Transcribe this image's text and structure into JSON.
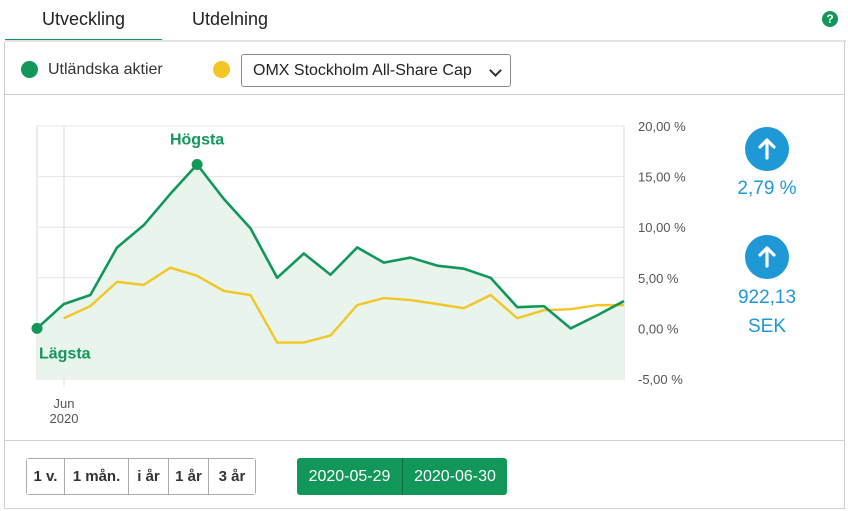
{
  "tabs": [
    {
      "label": "Utveckling",
      "active": true
    },
    {
      "label": "Utdelning",
      "active": false
    }
  ],
  "help_icon": "question-icon",
  "legend": {
    "fund_label": "Utländska aktier",
    "fund_color": "#12975a",
    "index_color": "#f3c623",
    "index_selected": "OMX Stockholm All-Share Cap"
  },
  "chart_data": {
    "type": "line",
    "x_labels": [
      "Jun 2020"
    ],
    "y_ticks": [
      "20,00 %",
      "15,00 %",
      "10,00 %",
      "5,00 %",
      "0,00 %",
      "-5,00 %"
    ],
    "ylim": [
      -5,
      20
    ],
    "annotations": {
      "high": "Högsta",
      "low": "Lägsta"
    },
    "series": [
      {
        "color": "#12975a",
        "fill": "#e8f4ec",
        "values": [
          0.0,
          2.4,
          3.3,
          8.0,
          10.2,
          13.3,
          16.2,
          12.8,
          9.9,
          5.0,
          7.4,
          5.3,
          8.0,
          6.5,
          7.0,
          6.2,
          5.9,
          5.0,
          2.1,
          2.2,
          0.0,
          1.3,
          2.7
        ]
      },
      {
        "color": "#f3c623",
        "values": [
          null,
          1.0,
          2.2,
          4.6,
          4.3,
          6.0,
          5.2,
          3.7,
          3.3,
          -1.4,
          -1.4,
          -0.7,
          2.3,
          3.0,
          2.8,
          2.4,
          2.0,
          3.3,
          1.0,
          1.8,
          1.9,
          2.3,
          2.3
        ]
      }
    ]
  },
  "stats": {
    "percent_change": "2,79 %",
    "value_change": "922,13",
    "value_currency": "SEK",
    "direction": "up"
  },
  "ranges": [
    "1 v.",
    "1 mån.",
    "i år",
    "1 år",
    "3 år"
  ],
  "dates": {
    "from": "2020-05-29",
    "to": "2020-06-30"
  }
}
